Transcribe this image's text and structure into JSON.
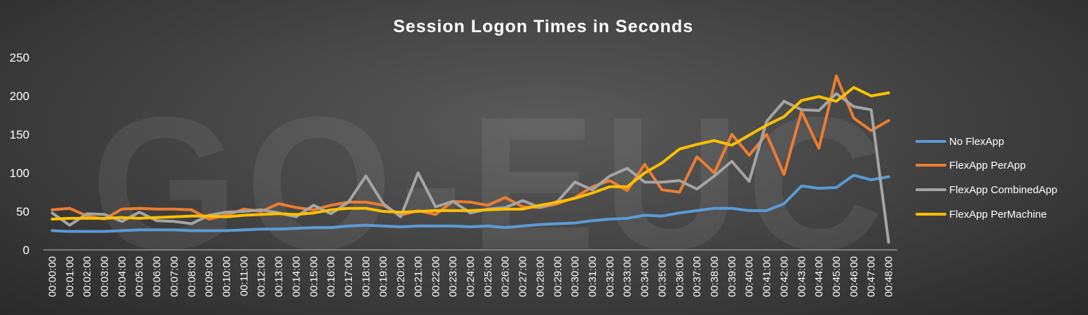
{
  "chart_data": {
    "type": "line",
    "title": "Session Logon Times in Seconds",
    "watermark": "GO-EUC",
    "ylim": [
      0,
      250
    ],
    "yticks": [
      0,
      50,
      100,
      150,
      200,
      250
    ],
    "grid": false,
    "legend_position": "right",
    "x": [
      "00:00:00",
      "00:01:00",
      "00:02:00",
      "00:03:00",
      "00:04:00",
      "00:05:00",
      "00:06:00",
      "00:07:00",
      "00:08:00",
      "00:09:00",
      "00:10:00",
      "00:11:00",
      "00:12:00",
      "00:13:00",
      "00:14:00",
      "00:15:00",
      "00:16:00",
      "00:17:00",
      "00:18:00",
      "00:19:00",
      "00:20:00",
      "00:21:00",
      "00:22:00",
      "00:23:00",
      "00:24:00",
      "00:25:00",
      "00:26:00",
      "00:27:00",
      "00:28:00",
      "00:29:00",
      "00:30:00",
      "00:31:00",
      "00:32:00",
      "00:33:00",
      "00:34:00",
      "00:35:00",
      "00:36:00",
      "00:37:00",
      "00:38:00",
      "00:39:00",
      "00:40:00",
      "00:41:00",
      "00:42:00",
      "00:43:00",
      "00:44:00",
      "00:45:00",
      "00:46:00",
      "00:47:00",
      "00:48:00"
    ],
    "series": [
      {
        "name": "No FlexApp",
        "color": "#5b9bd5",
        "values": [
          25,
          24,
          24,
          24,
          25,
          26,
          26,
          26,
          25,
          25,
          25,
          26,
          27,
          27,
          28,
          29,
          29,
          31,
          32,
          31,
          30,
          31,
          31,
          31,
          30,
          31,
          29,
          31,
          33,
          34,
          35,
          38,
          40,
          41,
          45,
          44,
          48,
          51,
          54,
          54,
          51,
          51,
          60,
          83,
          80,
          81,
          97,
          91,
          95
        ]
      },
      {
        "name": "FlexApp PerApp",
        "color": "#ed7d31",
        "values": [
          52,
          54,
          44,
          40,
          53,
          54,
          53,
          53,
          52,
          40,
          45,
          53,
          50,
          60,
          55,
          52,
          58,
          62,
          62,
          58,
          45,
          51,
          46,
          63,
          62,
          58,
          68,
          56,
          55,
          60,
          68,
          82,
          90,
          77,
          111,
          78,
          75,
          121,
          100,
          150,
          123,
          150,
          98,
          180,
          132,
          226,
          171,
          155,
          168
        ]
      },
      {
        "name": "FlexApp CombinedApp",
        "color": "#a5a5a5",
        "values": [
          48,
          32,
          47,
          46,
          37,
          49,
          38,
          37,
          34,
          45,
          49,
          50,
          52,
          48,
          43,
          58,
          47,
          62,
          96,
          60,
          43,
          100,
          56,
          63,
          48,
          53,
          55,
          64,
          55,
          63,
          88,
          78,
          96,
          106,
          88,
          88,
          90,
          79,
          96,
          115,
          89,
          167,
          193,
          182,
          181,
          203,
          186,
          182,
          10
        ]
      },
      {
        "name": "FlexApp PerMachine",
        "color": "#ffc000",
        "values": [
          40,
          41,
          41,
          41,
          42,
          41,
          42,
          43,
          44,
          44,
          43,
          45,
          46,
          47,
          46,
          48,
          52,
          54,
          54,
          50,
          49,
          50,
          51,
          51,
          51,
          52,
          53,
          53,
          58,
          62,
          67,
          74,
          82,
          82,
          100,
          113,
          131,
          137,
          142,
          136,
          149,
          162,
          173,
          194,
          199,
          193,
          211,
          200,
          204
        ]
      }
    ]
  }
}
